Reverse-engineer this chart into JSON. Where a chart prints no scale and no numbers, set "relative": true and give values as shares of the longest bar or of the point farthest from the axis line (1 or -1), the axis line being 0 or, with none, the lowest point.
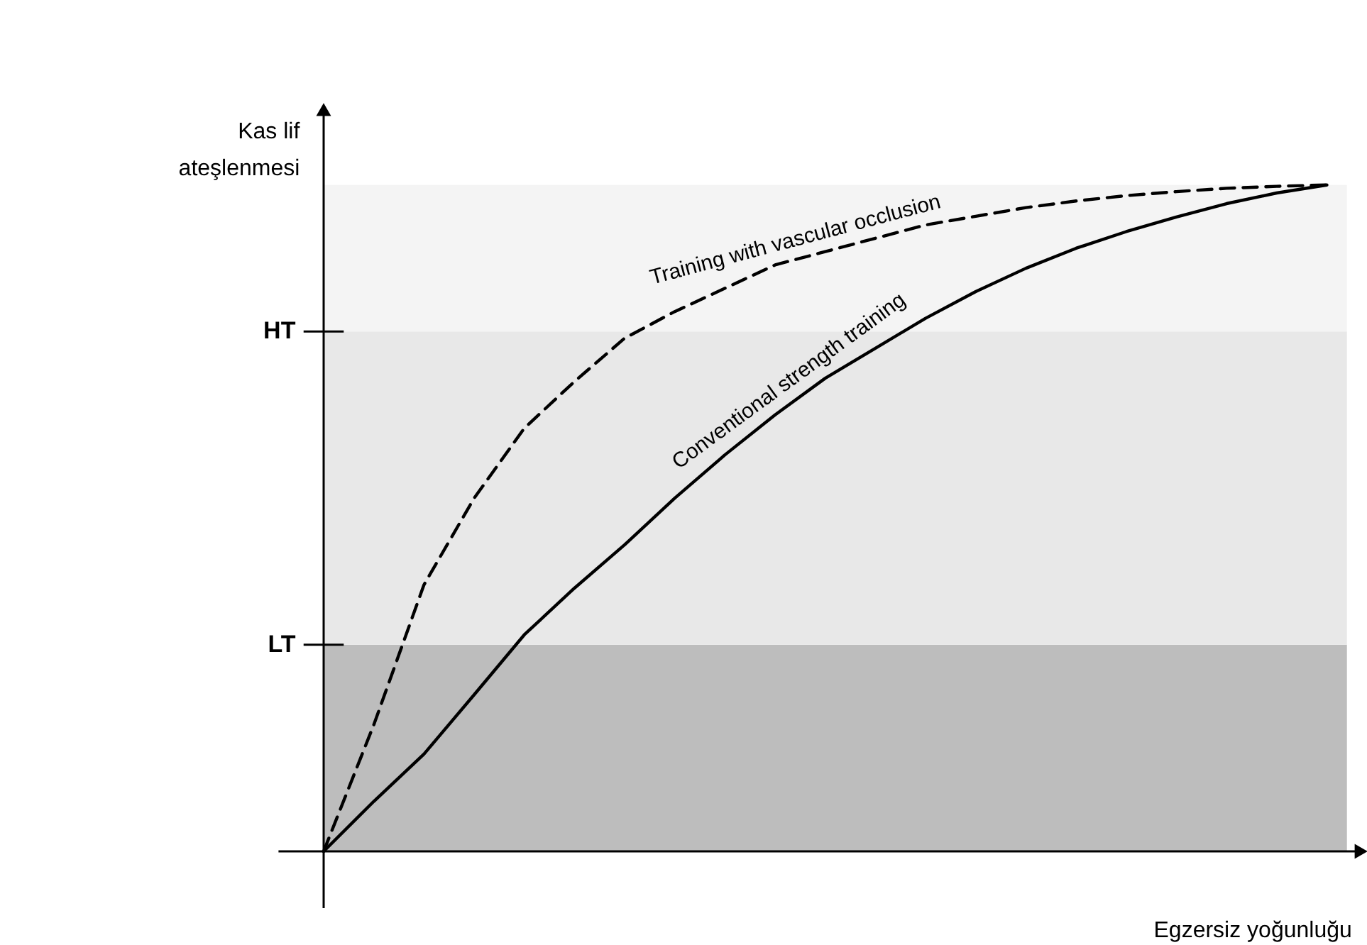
{
  "chart_data": {
    "type": "line",
    "relative": true,
    "ylabel": "Kas lif\nateşlenmesi",
    "xlabel": "Egzersiz yoğunluğu",
    "categories": [
      null,
      null,
      null,
      null,
      null,
      null,
      null,
      null,
      null,
      null,
      null,
      null,
      null,
      null,
      null,
      null,
      null,
      null,
      null,
      null,
      null
    ],
    "bands": [
      {
        "axis": "y",
        "from": 0,
        "to": 0.31,
        "color": "#bdbdbd"
      },
      {
        "axis": "y",
        "from": 0.31,
        "to": 0.78,
        "color": "#e8e8e8"
      },
      {
        "axis": "y",
        "from": 0.78,
        "to": 1,
        "color": "#f4f4f4"
      }
    ],
    "ref_lines": [
      {
        "axis": "y",
        "value": 0.31,
        "label": "LT"
      },
      {
        "axis": "y",
        "value": 0.78,
        "label": "HT"
      }
    ],
    "series": [
      {
        "name": "Training with vascular occlusion",
        "color": "#000000",
        "line_style": "dashed",
        "values": [
          0,
          0.19,
          0.4,
          0.53,
          0.635,
          0.705,
          0.77,
          0.81,
          0.845,
          0.88,
          0.9,
          0.92,
          0.94,
          0.953,
          0.966,
          0.976,
          0.984,
          0.99,
          0.995,
          0.998,
          1
        ]
      },
      {
        "name": "Conventional strength training",
        "color": "#000000",
        "line_style": "solid",
        "values": [
          0,
          0.075,
          0.146,
          0.235,
          0.325,
          0.395,
          0.46,
          0.53,
          0.595,
          0.655,
          0.71,
          0.755,
          0.8,
          0.84,
          0.875,
          0.905,
          0.93,
          0.952,
          0.972,
          0.988,
          1
        ]
      }
    ]
  }
}
